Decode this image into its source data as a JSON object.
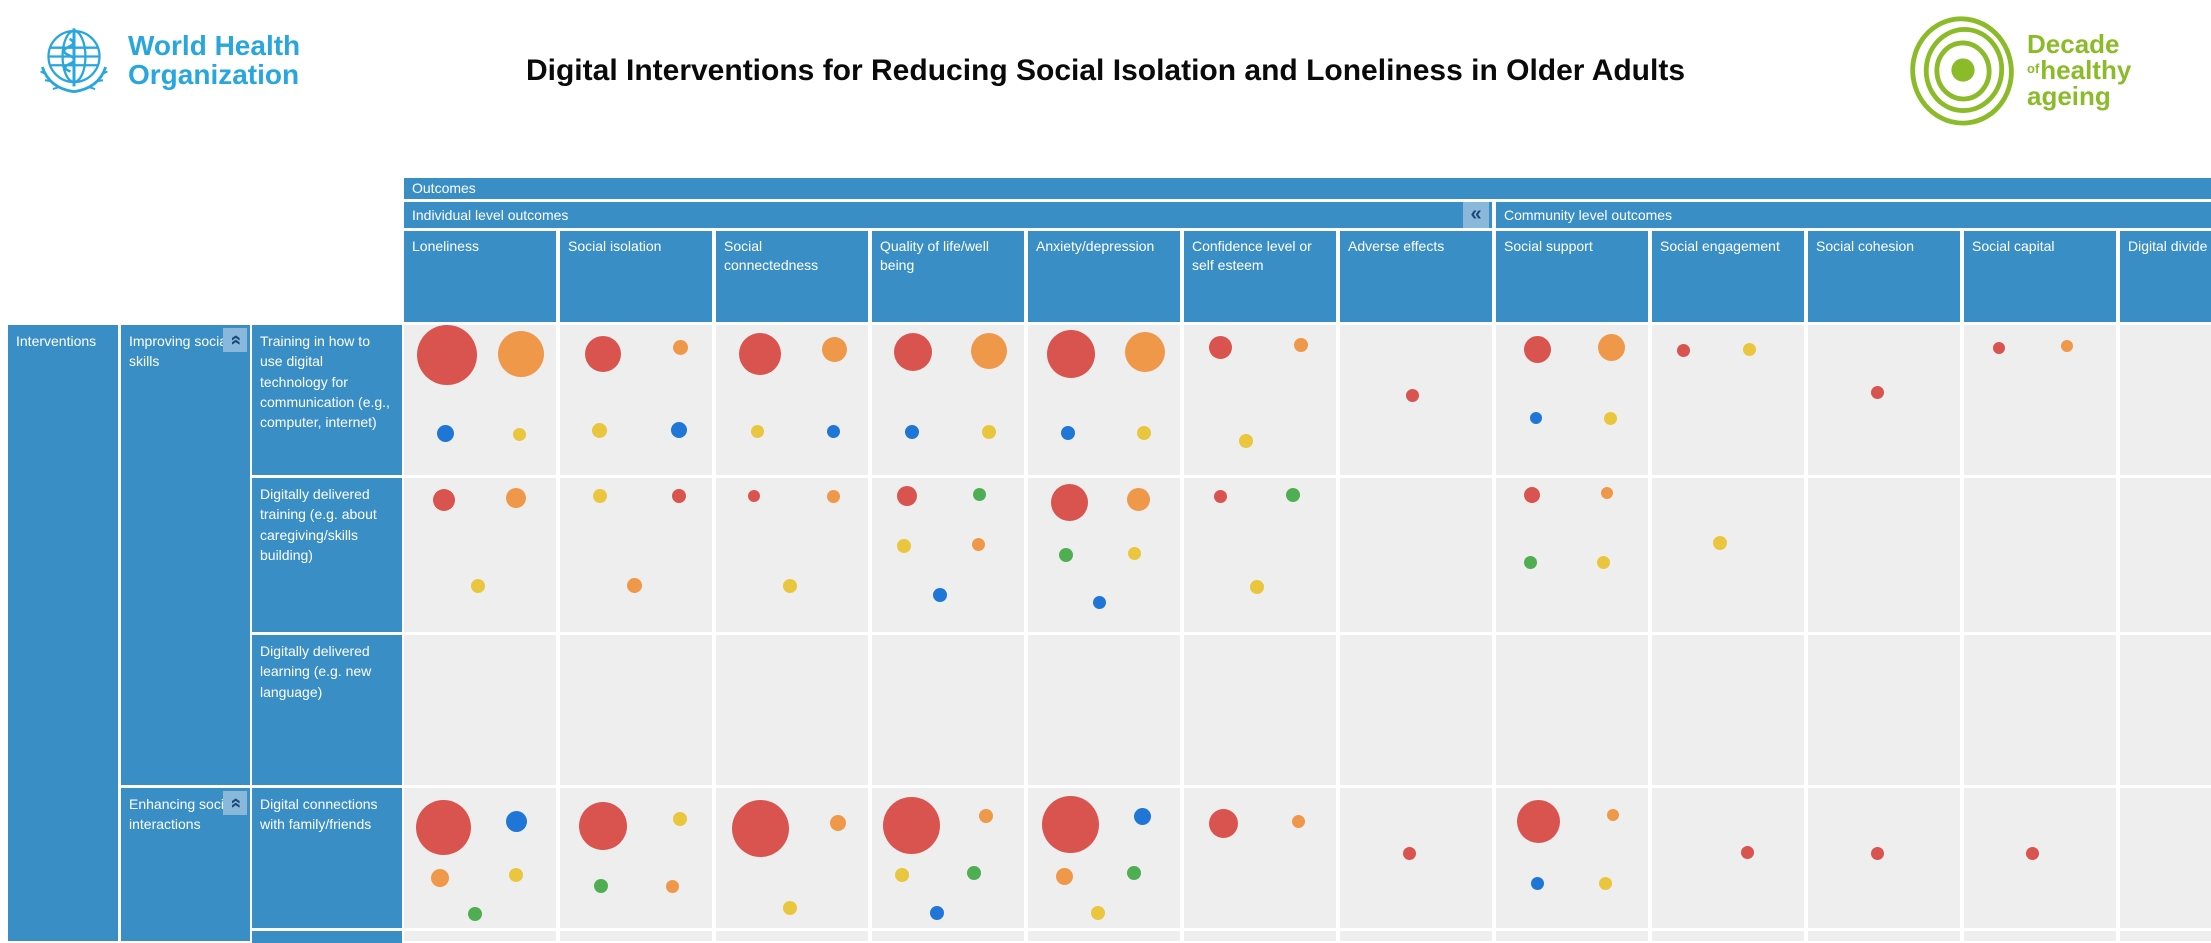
{
  "header": {
    "who_line1": "World Health",
    "who_line2": "Organization",
    "title": "Digital Interventions for Reducing Social Isolation and Loneliness in Older Adults",
    "decade": {
      "line1": "Decade",
      "of": "of",
      "line2": "healthy",
      "line3": "ageing"
    }
  },
  "table": {
    "outcomes_label": "Outcomes",
    "individual_group_label": "Individual level outcomes",
    "community_group_label": "Community level outcomes",
    "collapse_icon": "«",
    "columns": [
      "Loneliness",
      "Social isolation",
      "Social connectedness",
      "Quality of life/well being",
      "Anxiety/depression",
      "Confidence level or self esteem",
      "Adverse effects",
      "Social support",
      "Social engagement",
      "Social cohesion",
      "Social capital",
      "Digital divide"
    ],
    "interventions_label": "Interventions",
    "row_groups": [
      {
        "label": "Improving social skills",
        "rows": [
          "Training in how to use digital technology for communication (e.g., computer, internet)",
          "Digitally delivered training (e.g. about caregiving/skills building)",
          "Digitally delivered learning (e.g. new language)"
        ]
      },
      {
        "label": "Enhancing social interactions",
        "rows": [
          "Digital connections with family/friends"
        ]
      }
    ]
  },
  "colors": {
    "red": "#d9534f",
    "orange": "#ef9849",
    "yellow": "#e9c63d",
    "blue": "#1f76d6",
    "green": "#4fae51",
    "header_blue": "#3a8ec6",
    "collapse_bg": "#8ab8db",
    "collapse_glyph": "#17497a",
    "cell_bg": "#eeeeee",
    "who_blue": "#29a6dd",
    "decade_green": "#8cbb2a"
  },
  "bubble_matrix": [
    [
      [
        [
          "red",
          60,
          28,
          20
        ],
        [
          "orange",
          46,
          77,
          19
        ],
        [
          "blue",
          17,
          27,
          72
        ],
        [
          "yellow",
          13,
          76,
          73
        ]
      ],
      [
        [
          "red",
          36,
          28,
          19
        ],
        [
          "orange",
          15,
          79,
          15
        ],
        [
          "yellow",
          15,
          26,
          70
        ],
        [
          "blue",
          16,
          78,
          70
        ]
      ],
      [
        [
          "red",
          42,
          29,
          19
        ],
        [
          "orange",
          25,
          78,
          16
        ],
        [
          "yellow",
          13,
          27,
          71
        ],
        [
          "blue",
          13,
          77,
          71
        ]
      ],
      [
        [
          "red",
          38,
          27,
          18
        ],
        [
          "orange",
          36,
          77,
          17
        ],
        [
          "blue",
          14,
          26,
          71
        ],
        [
          "yellow",
          14,
          77,
          71
        ]
      ],
      [
        [
          "red",
          48,
          28,
          19
        ],
        [
          "orange",
          40,
          77,
          18
        ],
        [
          "blue",
          14,
          26,
          72
        ],
        [
          "yellow",
          14,
          76,
          72
        ]
      ],
      [
        [
          "red",
          23,
          24,
          15
        ],
        [
          "orange",
          14,
          77,
          13
        ],
        [
          "yellow",
          14,
          41,
          77
        ]
      ],
      [
        [
          "red",
          13,
          48,
          47
        ]
      ],
      [
        [
          "red",
          27,
          27,
          16
        ],
        [
          "orange",
          27,
          76,
          15
        ],
        [
          "blue",
          12,
          26,
          62
        ],
        [
          "yellow",
          13,
          75,
          62
        ]
      ],
      [
        [
          "red",
          13,
          21,
          17
        ],
        [
          "yellow",
          13,
          64,
          16
        ]
      ],
      [
        [
          "red",
          13,
          46,
          45
        ]
      ],
      [
        [
          "red",
          12,
          23,
          15
        ],
        [
          "orange",
          12,
          68,
          14
        ]
      ],
      []
    ],
    [
      [
        [
          "red",
          22,
          26,
          14
        ],
        [
          "orange",
          20,
          74,
          13
        ],
        [
          "yellow",
          14,
          49,
          70
        ]
      ],
      [
        [
          "yellow",
          14,
          26,
          12
        ],
        [
          "red",
          14,
          78,
          12
        ],
        [
          "orange",
          15,
          49,
          70
        ]
      ],
      [
        [
          "red",
          12,
          25,
          12
        ],
        [
          "orange",
          13,
          77,
          12
        ],
        [
          "yellow",
          14,
          49,
          70
        ]
      ],
      [
        [
          "red",
          20,
          23,
          12
        ],
        [
          "green",
          13,
          71,
          11
        ],
        [
          "yellow",
          14,
          21,
          44
        ],
        [
          "orange",
          13,
          70,
          43
        ],
        [
          "blue",
          14,
          45,
          76
        ]
      ],
      [
        [
          "red",
          37,
          27,
          16
        ],
        [
          "orange",
          23,
          73,
          14
        ],
        [
          "green",
          14,
          25,
          50
        ],
        [
          "yellow",
          13,
          70,
          49
        ],
        [
          "blue",
          13,
          47,
          81
        ]
      ],
      [
        [
          "red",
          13,
          24,
          12
        ],
        [
          "green",
          14,
          72,
          11
        ],
        [
          "yellow",
          14,
          48,
          71
        ]
      ],
      [],
      [
        [
          "red",
          16,
          24,
          11
        ],
        [
          "orange",
          12,
          73,
          10
        ],
        [
          "green",
          13,
          23,
          55
        ],
        [
          "yellow",
          13,
          71,
          55
        ]
      ],
      [
        [
          "yellow",
          14,
          45,
          42
        ]
      ],
      [],
      [],
      []
    ],
    [
      [],
      [],
      [],
      [],
      [],
      [],
      [],
      [],
      [],
      [],
      [],
      []
    ],
    [
      [
        [
          "red",
          55,
          26,
          28
        ],
        [
          "blue",
          21,
          74,
          24
        ],
        [
          "orange",
          18,
          24,
          64
        ],
        [
          "yellow",
          14,
          74,
          62
        ],
        [
          "green",
          14,
          47,
          90
        ]
      ],
      [
        [
          "red",
          48,
          28,
          27
        ],
        [
          "yellow",
          14,
          79,
          22
        ],
        [
          "green",
          14,
          27,
          70
        ],
        [
          "orange",
          13,
          74,
          70
        ]
      ],
      [
        [
          "red",
          57,
          29,
          29
        ],
        [
          "orange",
          16,
          80,
          25
        ],
        [
          "yellow",
          14,
          49,
          86
        ]
      ],
      [
        [
          "red",
          57,
          26,
          27
        ],
        [
          "orange",
          14,
          75,
          20
        ],
        [
          "yellow",
          14,
          20,
          62
        ],
        [
          "green",
          14,
          67,
          61
        ],
        [
          "blue",
          14,
          43,
          89
        ]
      ],
      [
        [
          "red",
          57,
          28,
          26
        ],
        [
          "blue",
          17,
          75,
          20
        ],
        [
          "orange",
          17,
          24,
          63
        ],
        [
          "green",
          14,
          70,
          61
        ],
        [
          "yellow",
          14,
          46,
          89
        ]
      ],
      [
        [
          "red",
          29,
          26,
          25
        ],
        [
          "orange",
          13,
          75,
          24
        ]
      ],
      [
        [
          "red",
          13,
          46,
          47
        ]
      ],
      [
        [
          "red",
          43,
          28,
          24
        ],
        [
          "orange",
          12,
          77,
          19
        ],
        [
          "blue",
          13,
          27,
          68
        ],
        [
          "yellow",
          13,
          72,
          68
        ]
      ],
      [
        [
          "red",
          13,
          63,
          46
        ]
      ],
      [
        [
          "red",
          13,
          46,
          47
        ]
      ],
      [
        [
          "red",
          13,
          45,
          47
        ]
      ],
      []
    ],
    [
      [],
      [],
      [],
      [],
      [],
      [],
      [],
      [],
      [],
      [],
      [],
      []
    ]
  ]
}
